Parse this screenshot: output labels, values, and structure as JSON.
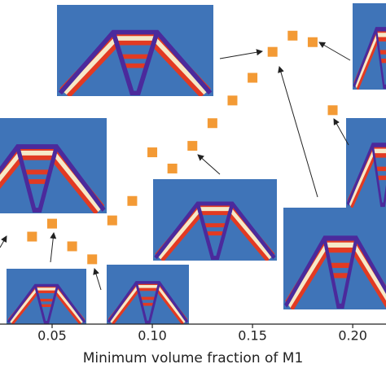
{
  "chart_data": {
    "type": "scatter",
    "x_label": "Minimum volume fraction of M1",
    "x": [
      0.04,
      0.05,
      0.06,
      0.07,
      0.08,
      0.09,
      0.1,
      0.11,
      0.12,
      0.13,
      0.14,
      0.15,
      0.16,
      0.17,
      0.18,
      0.19
    ],
    "values": [
      0.27,
      0.31,
      0.24,
      0.2,
      0.32,
      0.38,
      0.53,
      0.48,
      0.55,
      0.62,
      0.69,
      0.76,
      0.84,
      0.89,
      0.87,
      0.66
    ],
    "color": "#f39a35",
    "xlim": [
      0.024,
      0.2166
    ],
    "ylim": [
      0,
      1
    ],
    "xticks": [
      0.05,
      {
        "value": 0.1,
        "label": "0.10"
      },
      0.15,
      {
        "value": 0.2,
        "label": "0.20"
      }
    ]
  }
}
